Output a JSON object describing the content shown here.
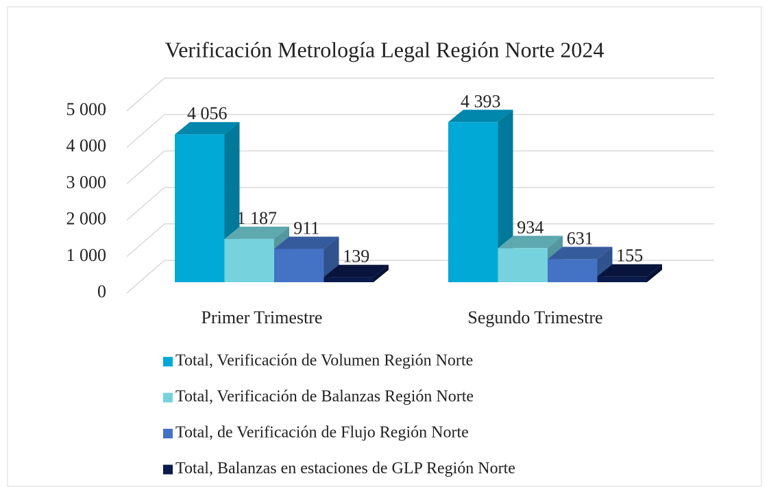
{
  "chart_data": {
    "type": "bar3d",
    "title": "Verificación Metrología Legal Región Norte 2024",
    "categories": [
      "Primer Trimestre",
      "Segundo Trimestre"
    ],
    "series": [
      {
        "name": "Total, Verificación de Volumen Región Norte",
        "color": "#00a9d6",
        "values": [
          4056,
          4393
        ],
        "value_labels": [
          "4 056",
          "4 393"
        ]
      },
      {
        "name": "Total, Verificación de Balanzas Región Norte",
        "color": "#76d3dd",
        "values": [
          1187,
          934
        ],
        "value_labels": [
          "1 187",
          "934"
        ]
      },
      {
        "name": "Total, de Verificación de Flujo Región Norte",
        "color": "#4472c4",
        "values": [
          911,
          631
        ],
        "value_labels": [
          "911",
          "631"
        ]
      },
      {
        "name": "Total, Balanzas en estaciones de GLP Región Norte",
        "color": "#0a1a4a",
        "values": [
          139,
          155
        ],
        "value_labels": [
          "139",
          "155"
        ]
      }
    ],
    "ylim": [
      0,
      5000
    ],
    "yticks": [
      0,
      {
        "value": 1000,
        "label": "1 000"
      },
      {
        "value": 2000,
        "label": "2 000"
      },
      {
        "value": 3000,
        "label": "3 000"
      },
      {
        "value": 4000,
        "label": "4 000"
      },
      {
        "value": 5000,
        "label": "5 000"
      }
    ],
    "grid": true,
    "legend": "bottom"
  }
}
